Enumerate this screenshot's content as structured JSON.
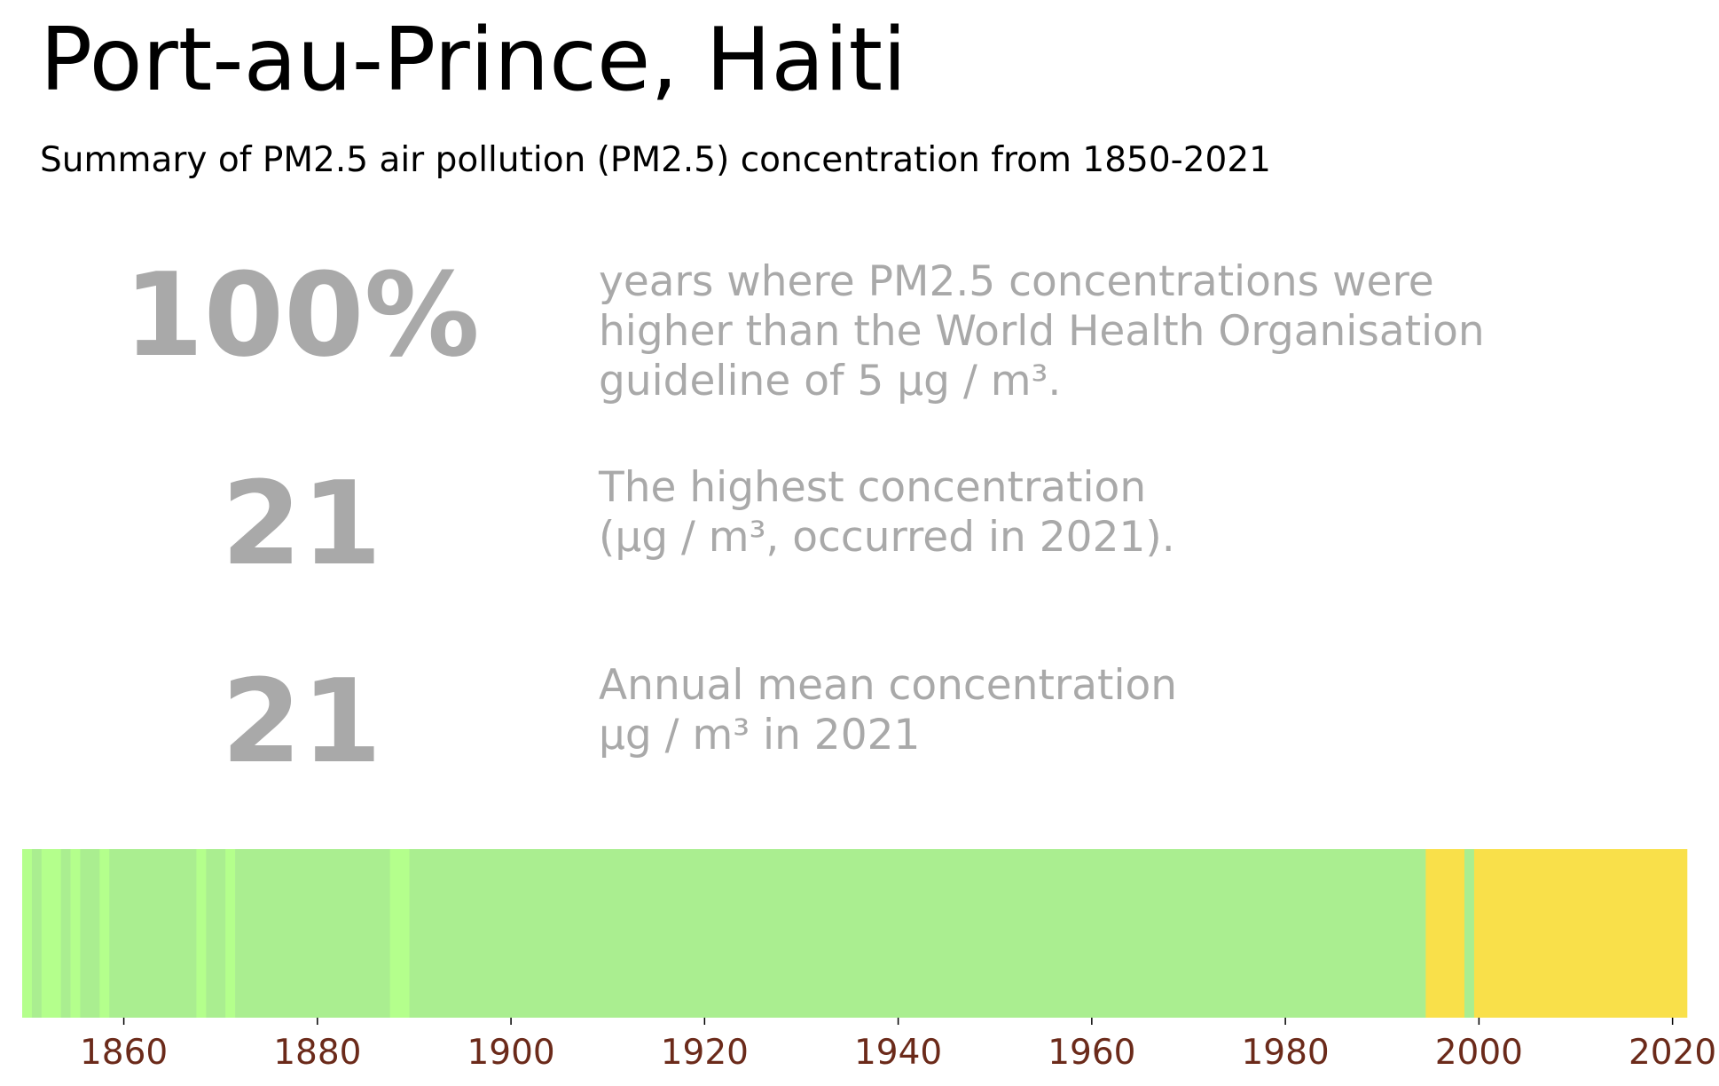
{
  "title": "Port-au-Prince, Haiti",
  "subtitle": "Summary of PM2.5 air pollution (PM2.5) concentration from 1850-2021",
  "stats": [
    {
      "value": "100%",
      "lines": [
        "years where PM2.5 concentrations were",
        "higher than the World Health Organisation",
        "guideline of 5 µg / m³."
      ]
    },
    {
      "value": "21",
      "lines": [
        "The highest concentration",
        "(µg / m³, occurred in 2021)."
      ]
    },
    {
      "value": "21",
      "lines": [
        "Annual mean concentration",
        "µg / m³ in 2021"
      ]
    }
  ],
  "colors": {
    "stat_text": "#a9a9a9",
    "tick_label": "#6b2a1a",
    "band_light_green": "#b4ff8c",
    "band_green": "#aaee90",
    "band_yellow": "#f9e04a"
  },
  "chart_data": {
    "type": "heatmap",
    "x_range": [
      1850,
      2021
    ],
    "ticks": [
      1860,
      1880,
      1900,
      1920,
      1940,
      1960,
      1980,
      2000,
      2020
    ],
    "grid": false,
    "segments": [
      {
        "start": 1850,
        "end": 1850,
        "category": "light_green"
      },
      {
        "start": 1851,
        "end": 1851,
        "category": "green"
      },
      {
        "start": 1852,
        "end": 1853,
        "category": "light_green"
      },
      {
        "start": 1854,
        "end": 1854,
        "category": "green"
      },
      {
        "start": 1855,
        "end": 1855,
        "category": "light_green"
      },
      {
        "start": 1856,
        "end": 1857,
        "category": "green"
      },
      {
        "start": 1858,
        "end": 1858,
        "category": "light_green"
      },
      {
        "start": 1859,
        "end": 1867,
        "category": "green"
      },
      {
        "start": 1868,
        "end": 1868,
        "category": "light_green"
      },
      {
        "start": 1869,
        "end": 1870,
        "category": "green"
      },
      {
        "start": 1871,
        "end": 1871,
        "category": "light_green"
      },
      {
        "start": 1872,
        "end": 1887,
        "category": "green"
      },
      {
        "start": 1888,
        "end": 1889,
        "category": "light_green"
      },
      {
        "start": 1890,
        "end": 1994,
        "category": "green"
      },
      {
        "start": 1995,
        "end": 1998,
        "category": "yellow"
      },
      {
        "start": 1999,
        "end": 1999,
        "category": "green"
      },
      {
        "start": 2000,
        "end": 2021,
        "category": "yellow"
      }
    ]
  }
}
